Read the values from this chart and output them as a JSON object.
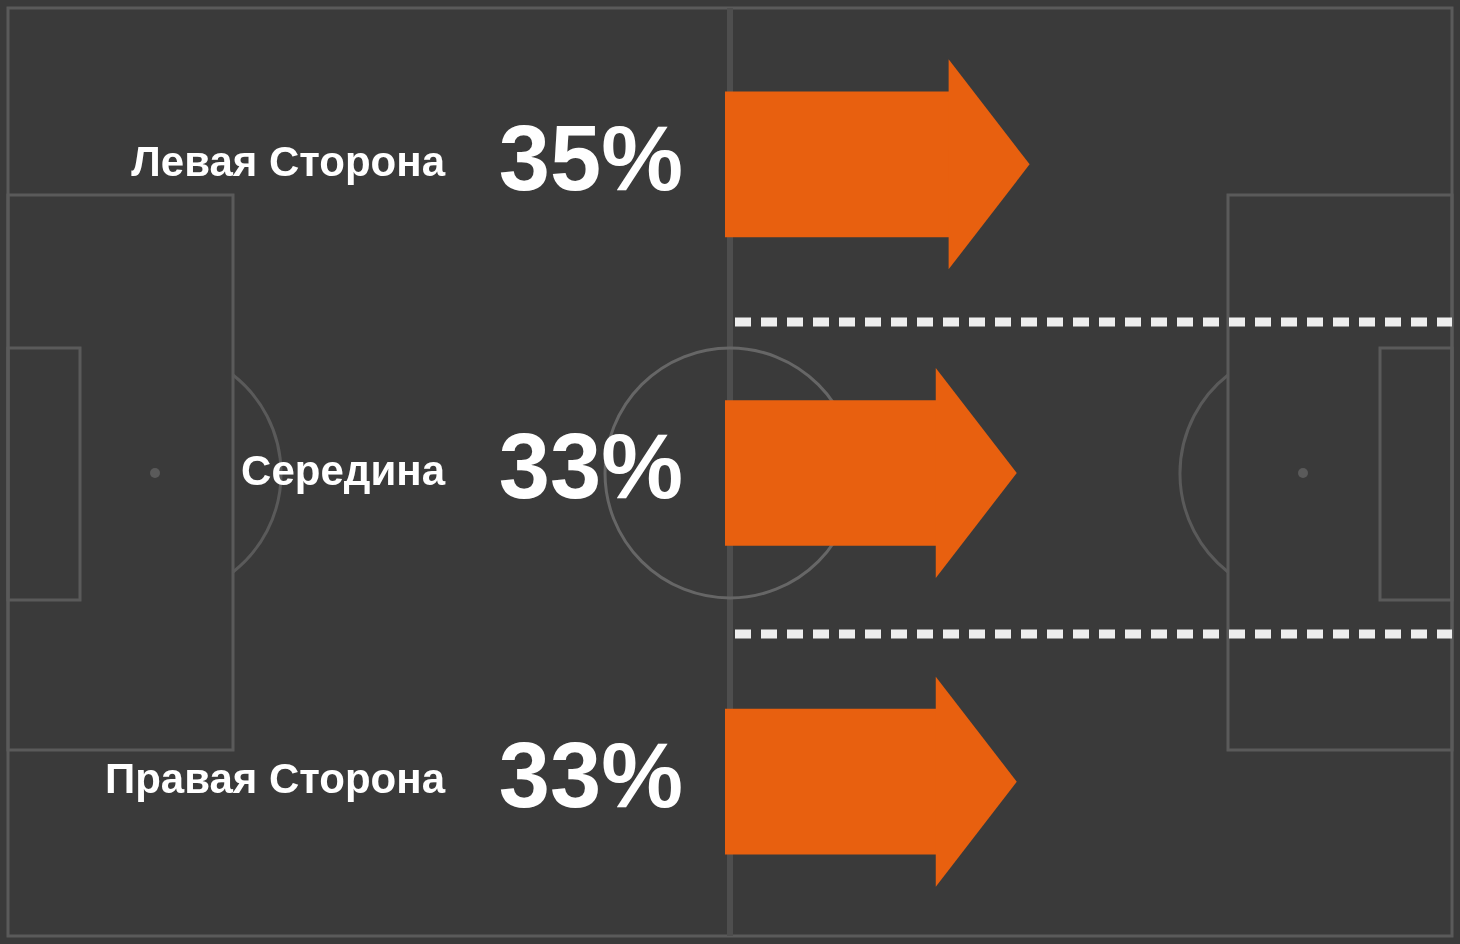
{
  "chart_data": {
    "type": "bar",
    "orientation": "horizontal",
    "categories": [
      "Левая Сторона",
      "Середина",
      "Правая Сторона"
    ],
    "values": [
      35,
      33,
      33
    ],
    "color": "#e8600f",
    "value_labels": [
      "35%",
      "33%",
      "33%"
    ]
  }
}
